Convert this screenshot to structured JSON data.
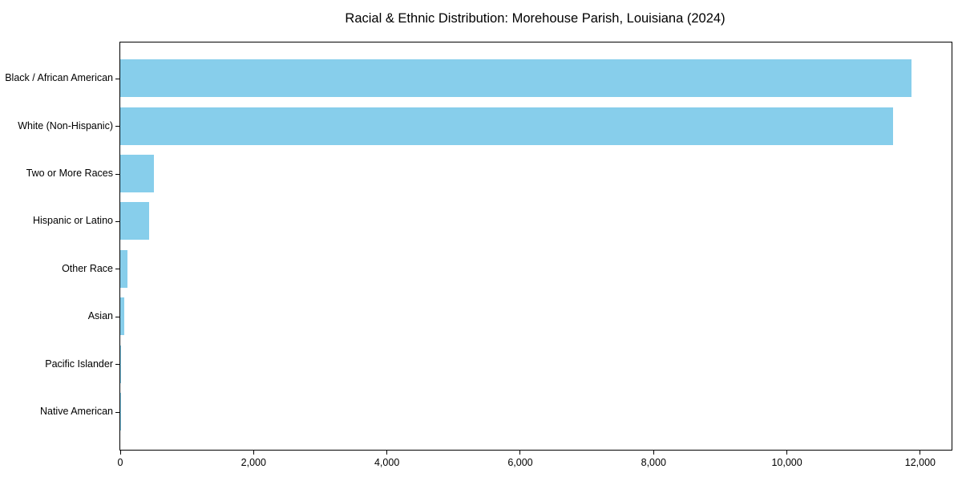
{
  "chart_data": {
    "type": "bar",
    "orientation": "horizontal",
    "title": "Racial & Ethnic Distribution: Morehouse Parish, Louisiana (2024)",
    "categories": [
      "Black / African American",
      "White (Non-Hispanic)",
      "Two or More Races",
      "Hispanic or Latino",
      "Other Race",
      "Asian",
      "Pacific Islander",
      "Native American"
    ],
    "values": [
      11870,
      11590,
      500,
      430,
      110,
      65,
      12,
      8
    ],
    "x_ticks": [
      0,
      2000,
      4000,
      6000,
      8000,
      10000,
      12000
    ],
    "x_tick_labels": [
      "0",
      "2,000",
      "4,000",
      "6,000",
      "8,000",
      "10,000",
      "12,000"
    ],
    "xlim": [
      0,
      12470
    ],
    "xlabel": "",
    "ylabel": "",
    "grid": false,
    "legend": "none",
    "bar_color": "#87CEEB",
    "axis_color": "#000000",
    "background_color": "#FFFFFF"
  }
}
